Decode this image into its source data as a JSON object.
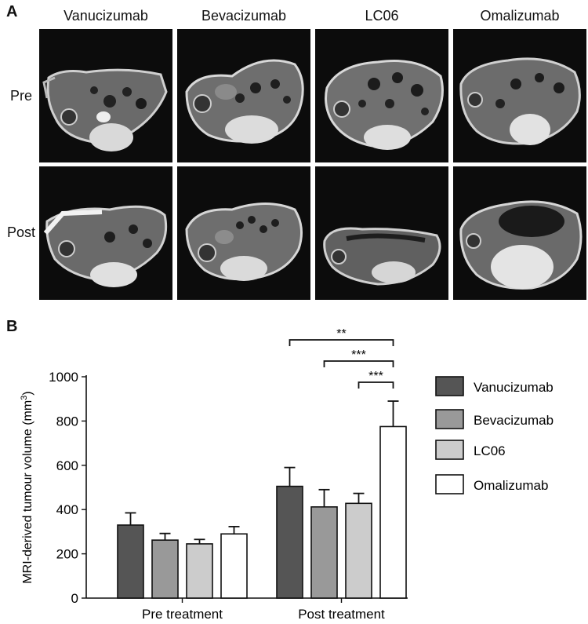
{
  "panel_a": {
    "letter": "A",
    "columns": [
      "Vanucizumab",
      "Bevacizumab",
      "LC06",
      "Omalizumab"
    ],
    "rows": [
      "Pre",
      "Post"
    ]
  },
  "panel_b": {
    "letter": "B"
  },
  "chart_data": {
    "type": "bar",
    "categories": [
      "Pre treatment",
      "Post treatment"
    ],
    "series": [
      {
        "name": "Vanucizumab",
        "values": [
          330,
          505
        ],
        "errors": [
          55,
          85
        ],
        "color": "#555555"
      },
      {
        "name": "Bevacizumab",
        "values": [
          262,
          412
        ],
        "errors": [
          30,
          78
        ],
        "color": "#999999"
      },
      {
        "name": "LC06",
        "values": [
          245,
          428
        ],
        "errors": [
          20,
          45
        ],
        "color": "#cccccc"
      },
      {
        "name": "Omalizumab",
        "values": [
          290,
          775
        ],
        "errors": [
          33,
          115
        ],
        "color": "#ffffff"
      }
    ],
    "ylabel": "MRI-derived tumour volume (mm",
    "ylabel_sup": "3",
    "ylabel_close": ")",
    "ylim": [
      0,
      1000
    ],
    "yticks": [
      "0",
      "200",
      "400",
      "600",
      "800",
      "1000"
    ],
    "legend_position": "right",
    "significance": [
      {
        "label": "**",
        "from": "Vanucizumab",
        "to": "Omalizumab",
        "group": "Post treatment"
      },
      {
        "label": "***",
        "from": "Bevacizumab",
        "to": "Omalizumab",
        "group": "Post treatment"
      },
      {
        "label": "***",
        "from": "LC06",
        "to": "Omalizumab",
        "group": "Post treatment"
      }
    ]
  }
}
